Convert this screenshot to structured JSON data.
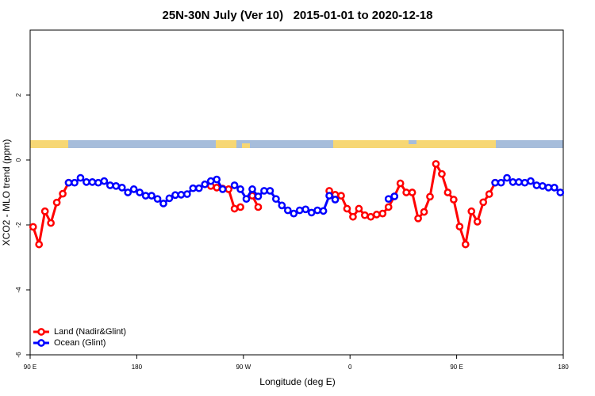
{
  "chart_data": {
    "type": "line",
    "title": "25N-30N July (Ver 10)   2015-01-01 to 2020-12-18",
    "x_label": "Longitude (deg E)",
    "y_label": "XCO2 - MLO trend (ppm)",
    "xlim": [
      90,
      540
    ],
    "xticks": [
      {
        "value": 90,
        "label": "90 E"
      },
      180,
      {
        "value": 270,
        "label": "90 W"
      },
      {
        "value": 360,
        "label": "0"
      },
      {
        "value": 450,
        "label": "90 E"
      },
      {
        "value": 540,
        "label": "180"
      }
    ],
    "ylim": [
      -6,
      4
    ],
    "yticks": [
      -6,
      -4,
      -2,
      0,
      2
    ],
    "legend": "bottom-left",
    "x": [
      92.5,
      97.5,
      102.5,
      107.5,
      112.5,
      117.5,
      122.5,
      127.5,
      132.5,
      137.5,
      142.5,
      147.5,
      152.5,
      157.5,
      162.5,
      167.5,
      172.5,
      177.5,
      182.5,
      187.5,
      192.5,
      197.5,
      202.5,
      207.5,
      212.5,
      217.5,
      222.5,
      227.5,
      232.5,
      237.5,
      242.5,
      247.5,
      252.5,
      257.5,
      262.5,
      267.5,
      272.5,
      277.5,
      282.5,
      287.5,
      292.5,
      297.5,
      302.5,
      307.5,
      312.5,
      317.5,
      322.5,
      327.5,
      332.5,
      337.5,
      342.5,
      347.5,
      352.5,
      357.5,
      362.5,
      367.5,
      372.5,
      377.5,
      382.5,
      387.5,
      392.5,
      397.5,
      402.5,
      407.5,
      412.5,
      417.5,
      422.5,
      427.5,
      432.5,
      437.5,
      442.5,
      447.5,
      452.5,
      457.5,
      462.5,
      467.5,
      472.5,
      477.5,
      482.5,
      487.5,
      492.5,
      497.5,
      502.5,
      507.5,
      512.5,
      517.5,
      522.5,
      527.5,
      532.5,
      537.5
    ],
    "series": [
      {
        "name": "Land (Nadir&Glint)",
        "color": "#ff0000",
        "values": [
          -2.06,
          -2.6,
          -1.58,
          -1.94,
          -1.31,
          -1.04,
          -0.7,
          null,
          null,
          null,
          null,
          null,
          null,
          null,
          null,
          null,
          null,
          null,
          null,
          null,
          null,
          null,
          null,
          null,
          null,
          null,
          null,
          null,
          null,
          null,
          -0.8,
          -0.85,
          -0.88,
          -0.9,
          -1.5,
          -1.45,
          null,
          -1.1,
          -1.45,
          null,
          null,
          null,
          null,
          null,
          null,
          null,
          null,
          null,
          null,
          null,
          -0.95,
          -1.07,
          -1.1,
          -1.5,
          -1.75,
          -1.5,
          -1.7,
          -1.75,
          -1.68,
          -1.65,
          -1.45,
          -1.12,
          -0.72,
          -1.0,
          -1.0,
          -1.8,
          -1.6,
          -1.13,
          -0.12,
          -0.43,
          -1.0,
          -1.22,
          -2.05,
          -2.6,
          -1.58,
          -1.9,
          -1.3,
          -1.05,
          -0.7,
          null,
          null,
          null,
          null,
          null,
          null,
          null,
          null,
          null,
          null,
          null
        ]
      },
      {
        "name": "Ocean (Glint)",
        "color": "#0000ff",
        "values": [
          null,
          null,
          null,
          null,
          null,
          null,
          -0.7,
          -0.7,
          -0.55,
          -0.68,
          -0.68,
          -0.7,
          -0.65,
          -0.78,
          -0.8,
          -0.85,
          -1.0,
          -0.9,
          -1.0,
          -1.1,
          -1.1,
          -1.2,
          -1.34,
          -1.18,
          -1.08,
          -1.07,
          -1.05,
          -0.87,
          -0.87,
          -0.75,
          -0.65,
          -0.6,
          -0.9,
          null,
          -0.78,
          -0.9,
          -1.2,
          -0.9,
          -1.12,
          -0.95,
          -0.95,
          -1.2,
          -1.4,
          -1.55,
          -1.65,
          -1.55,
          -1.52,
          -1.62,
          -1.55,
          -1.57,
          -1.1,
          -1.22,
          null,
          null,
          null,
          null,
          null,
          null,
          null,
          null,
          -1.2,
          -1.12,
          null,
          null,
          null,
          null,
          null,
          null,
          null,
          null,
          null,
          null,
          null,
          null,
          null,
          null,
          null,
          null,
          -0.7,
          -0.7,
          -0.55,
          -0.68,
          -0.68,
          -0.7,
          -0.65,
          -0.78,
          -0.8,
          -0.85,
          -0.85,
          -1.0
        ]
      }
    ]
  }
}
